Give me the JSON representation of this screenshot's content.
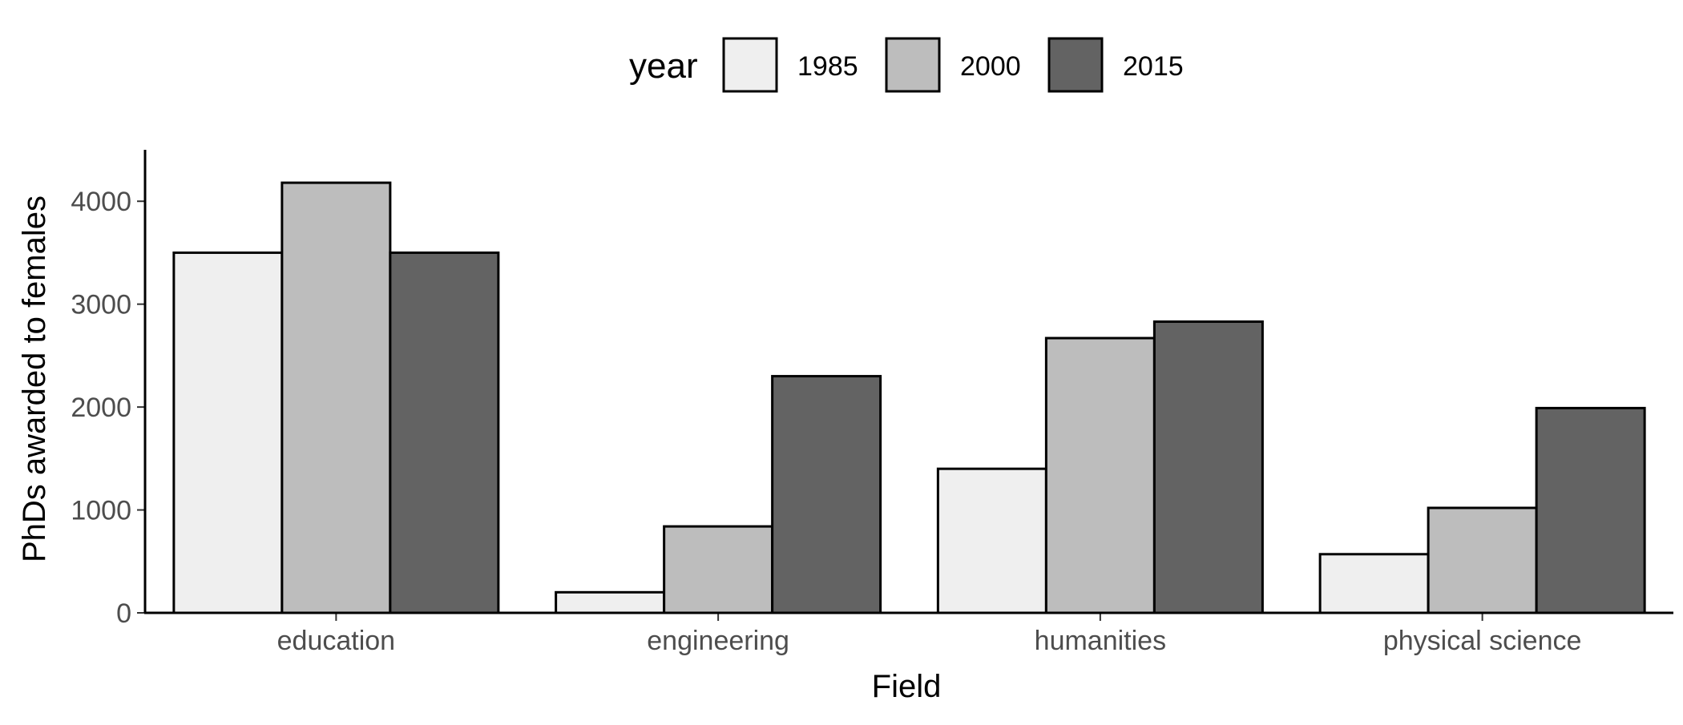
{
  "chart_data": {
    "type": "bar",
    "title": "",
    "xlabel": "Field",
    "ylabel": "PhDs awarded to females",
    "categories": [
      "education",
      "engineering",
      "humanities",
      "physical science"
    ],
    "series": [
      {
        "name": "1985",
        "values": [
          3500,
          200,
          1400,
          570
        ],
        "color": "#efefef"
      },
      {
        "name": "2000",
        "values": [
          4180,
          840,
          2670,
          1020
        ],
        "color": "#bdbdbd"
      },
      {
        "name": "2015",
        "values": [
          3500,
          2300,
          2830,
          1990
        ],
        "color": "#636363"
      }
    ],
    "ylim": [
      0,
      4500
    ],
    "yticks": [
      "0",
      "1000",
      "2000",
      "3000",
      "4000"
    ],
    "ytick_values": [
      0,
      1000,
      2000,
      3000,
      4000
    ],
    "legend": {
      "title": "year",
      "position": "top"
    },
    "grid": false
  }
}
